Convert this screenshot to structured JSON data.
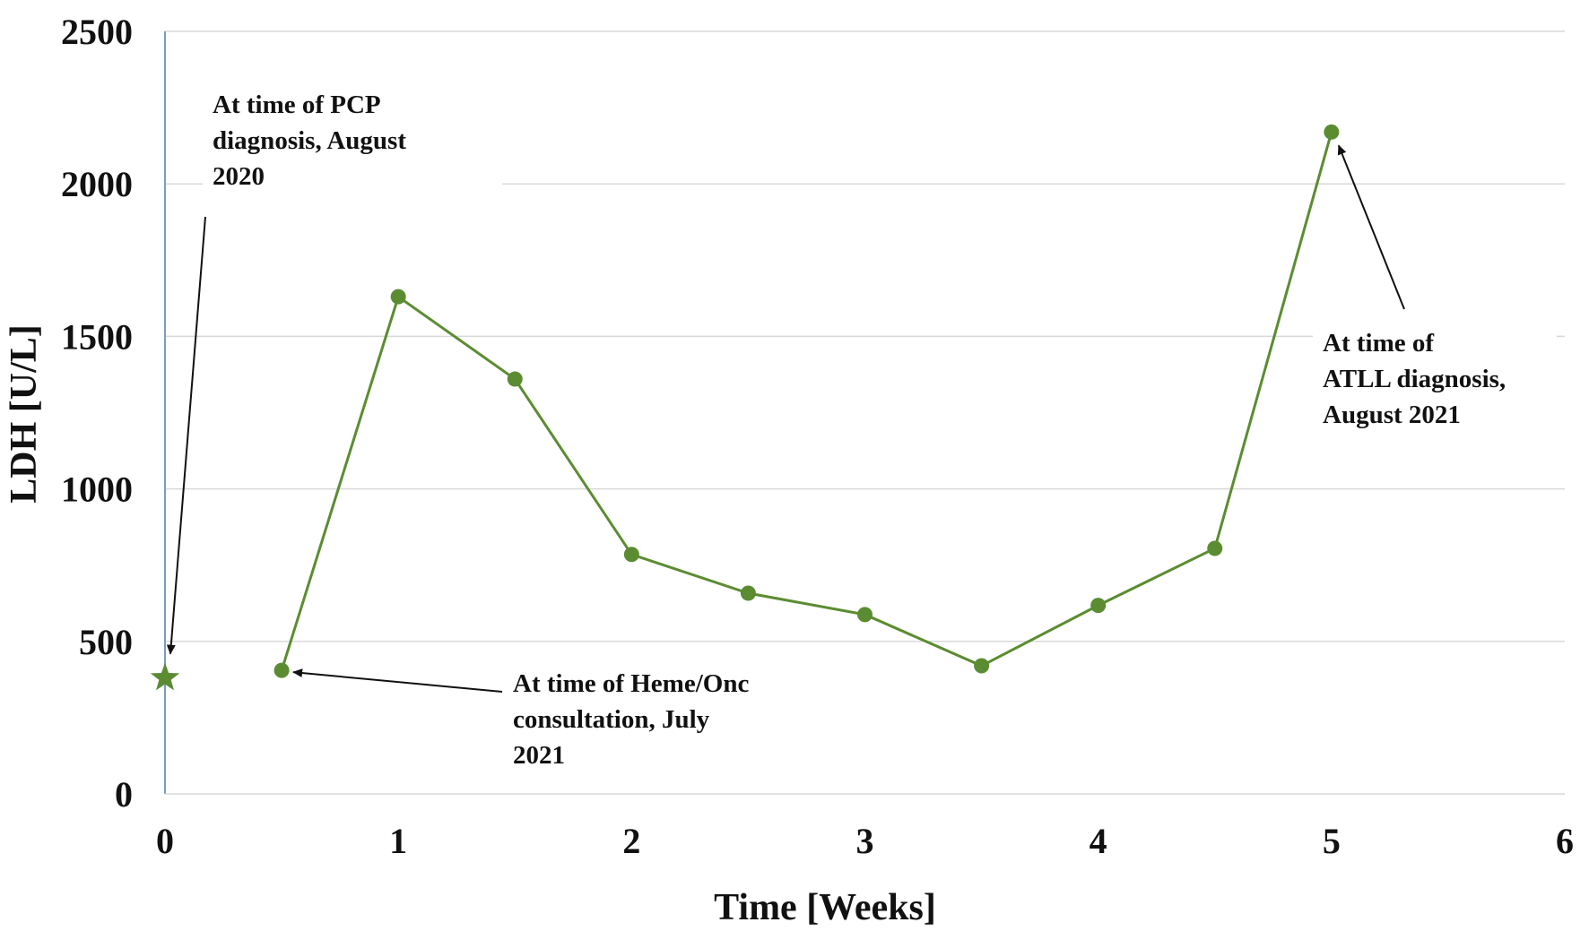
{
  "chart_data": {
    "type": "line",
    "xlabel": "Time [Weeks]",
    "ylabel": "LDH [U/L]",
    "xlim": [
      0,
      6
    ],
    "ylim": [
      0,
      2500
    ],
    "x_ticks": [
      "0",
      "1",
      "2",
      "3",
      "4",
      "5",
      "6"
    ],
    "y_ticks": [
      "0",
      "500",
      "1000",
      "1500",
      "2000",
      "2500"
    ],
    "grid": "horizontal",
    "line_color": "#5b8c32",
    "series": [
      {
        "x": [
          0.5,
          1,
          1.5,
          2,
          2.5,
          3,
          3.5,
          4,
          4.5,
          5
        ],
        "y": [
          405,
          1630,
          1360,
          785,
          658,
          588,
          420,
          618,
          805,
          2170
        ]
      }
    ],
    "star_point": {
      "x": 0,
      "y": 380
    },
    "annotations": [
      {
        "lines": [
          "At time of PCP",
          "diagnosis, August",
          "2020"
        ],
        "target": {
          "x": 0,
          "y": 380
        }
      },
      {
        "lines": [
          "At time of Heme/Onc",
          "consultation, July",
          "2021"
        ],
        "target": {
          "x": 0.5,
          "y": 405
        }
      },
      {
        "lines": [
          "At time of",
          "ATLL diagnosis,",
          "August 2021"
        ],
        "target": {
          "x": 5,
          "y": 2170
        }
      }
    ]
  }
}
